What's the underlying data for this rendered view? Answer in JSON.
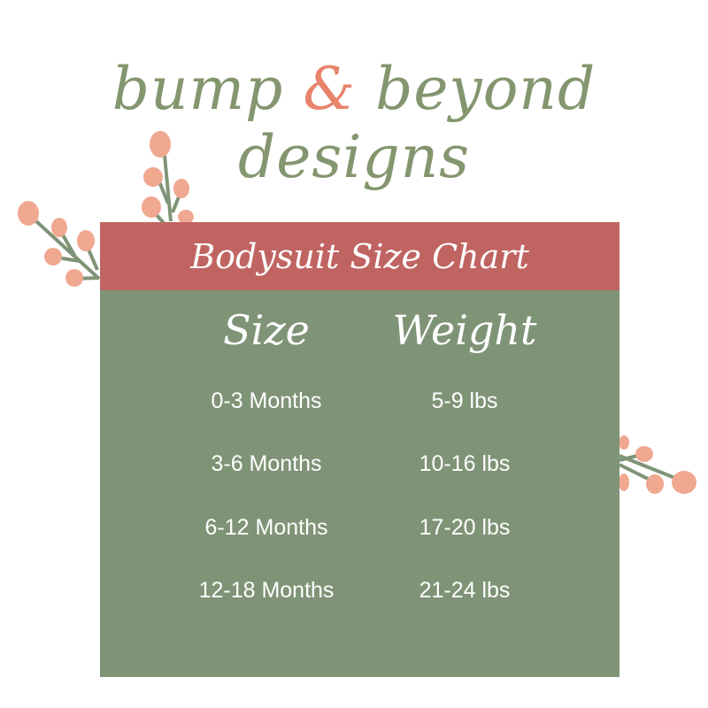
{
  "brand": {
    "part1": "bump ",
    "ampersand": "&",
    "part2": " beyond designs"
  },
  "chart": {
    "title": "Bodysuit Size Chart",
    "headers": [
      "Size",
      "Weight"
    ],
    "rows": [
      [
        "0-3 Months",
        "5-9 lbs"
      ],
      [
        "3-6 Months",
        "10-16 lbs"
      ],
      [
        "6-12 Months",
        "17-20 lbs"
      ],
      [
        "12-18 Months",
        "21-24 lbs"
      ]
    ]
  },
  "colors": {
    "header_band": "#c06462",
    "panel": "#7f9477",
    "logo": "#84966f",
    "accent": "#e8836c",
    "berry": "#f0a890"
  },
  "icons": [
    "berry-branch-icon"
  ]
}
